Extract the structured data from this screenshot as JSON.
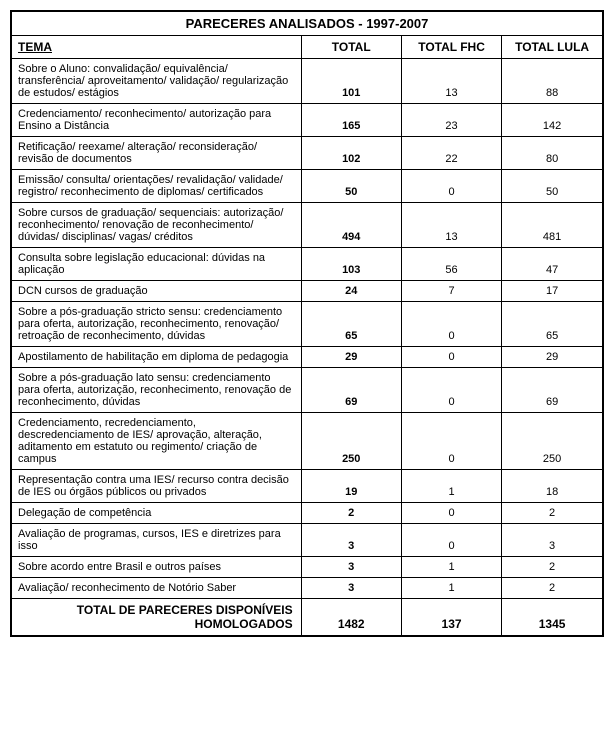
{
  "title": "PARECERES ANALISADOS - 1997-2007",
  "columns": [
    "TEMA",
    "TOTAL",
    "TOTAL FHC",
    "TOTAL LULA"
  ],
  "rows": [
    {
      "tema": "Sobre o Aluno: convalidação/ equivalência/ transferência/ aproveitamento/ validação/ regularização de estudos/ estágios",
      "total": "101",
      "fhc": "13",
      "lula": "88"
    },
    {
      "tema": "Credenciamento/ reconhecimento/ autorização para Ensino a Distância",
      "total": "165",
      "fhc": "23",
      "lula": "142"
    },
    {
      "tema": "Retificação/ reexame/ alteração/ reconsideração/ revisão de documentos",
      "total": "102",
      "fhc": "22",
      "lula": "80"
    },
    {
      "tema": "Emissão/ consulta/ orientações/ revalidação/ validade/ registro/ reconhecimento de diplomas/ certificados",
      "total": "50",
      "fhc": "0",
      "lula": "50"
    },
    {
      "tema": "Sobre cursos de graduação/ sequenciais: autorização/ reconhecimento/ renovação de reconhecimento/ dúvidas/ disciplinas/ vagas/ créditos",
      "total": "494",
      "fhc": "13",
      "lula": "481"
    },
    {
      "tema": "Consulta sobre legislação educacional: dúvidas na aplicação",
      "total": "103",
      "fhc": "56",
      "lula": "47"
    },
    {
      "tema": "DCN cursos de graduação",
      "total": "24",
      "fhc": "7",
      "lula": "17"
    },
    {
      "tema": "Sobre a pós-graduação stricto sensu: credenciamento para oferta, autorização, reconhecimento, renovação/ retroação de reconhecimento, dúvidas",
      "total": "65",
      "fhc": "0",
      "lula": "65"
    },
    {
      "tema": "Apostilamento de habilitação em diploma de pedagogia",
      "total": "29",
      "fhc": "0",
      "lula": "29"
    },
    {
      "tema": "Sobre a pós-graduação lato sensu: credenciamento para oferta, autorização, reconhecimento, renovação de reconhecimento, dúvidas",
      "total": "69",
      "fhc": "0",
      "lula": "69"
    },
    {
      "tema": "Credenciamento, recredenciamento, descredenciamento de IES/ aprovação, alteração, aditamento em estatuto ou regimento/ criação de campus",
      "total": "250",
      "fhc": "0",
      "lula": "250"
    },
    {
      "tema": "Representação contra uma IES/ recurso contra decisão de IES ou órgãos públicos ou privados",
      "total": "19",
      "fhc": "1",
      "lula": "18"
    },
    {
      "tema": "Delegação de competência",
      "total": "2",
      "fhc": "0",
      "lula": "2"
    },
    {
      "tema": "Avaliação de programas, cursos, IES e diretrizes para isso",
      "total": "3",
      "fhc": "0",
      "lula": "3"
    },
    {
      "tema": "Sobre acordo entre Brasil e outros países",
      "total": "3",
      "fhc": "1",
      "lula": "2"
    },
    {
      "tema": "Avaliação/ reconhecimento de Notório Saber",
      "total": "3",
      "fhc": "1",
      "lula": "2"
    }
  ],
  "footer": {
    "label": "TOTAL DE PARECERES DISPONÍVEIS HOMOLOGADOS",
    "total": "1482",
    "fhc": "137",
    "lula": "1345"
  },
  "styling": {
    "border_color": "#000000",
    "background_color": "#ffffff",
    "font_family": "Arial, sans-serif",
    "title_fontsize": 13,
    "header_fontsize": 12,
    "body_fontsize": 11,
    "col_widths_pct": [
      49,
      17,
      17,
      17
    ]
  }
}
